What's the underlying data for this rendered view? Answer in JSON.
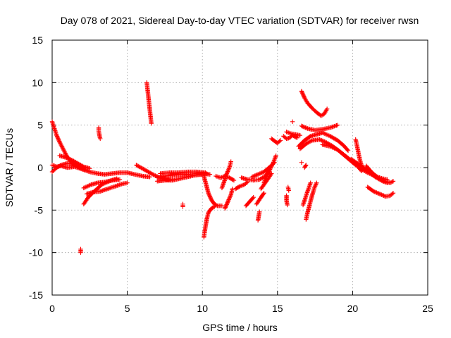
{
  "chart_data": {
    "type": "scatter",
    "title": "Day 078 of 2021, Sidereal Day-to-day VTEC variation (SDTVAR) for receiver rwsn",
    "xlabel": "GPS time / hours",
    "ylabel": "SDTVAR / TECUs",
    "xlim": [
      0,
      25
    ],
    "ylim": [
      -15,
      15
    ],
    "xticks": [
      0,
      5,
      10,
      15,
      20,
      25
    ],
    "yticks": [
      -15,
      -10,
      -5,
      0,
      5,
      10,
      15
    ],
    "grid": true,
    "marker": "+",
    "color": "#ff0000",
    "series": [
      {
        "name": "t01",
        "points": [
          [
            0.0,
            0.3
          ],
          [
            0.3,
            0.1
          ],
          [
            0.6,
            0.2
          ],
          [
            1.0,
            0.0
          ],
          [
            1.5,
            0.1
          ],
          [
            2.0,
            -0.2
          ],
          [
            2.5,
            -0.5
          ],
          [
            3.0,
            -0.7
          ],
          [
            3.5,
            -0.8
          ],
          [
            4.0,
            -0.7
          ],
          [
            4.5,
            -0.6
          ],
          [
            5.0,
            -0.6
          ],
          [
            5.5,
            -0.8
          ],
          [
            6.0,
            -1.0
          ],
          [
            6.5,
            -1.1
          ]
        ]
      },
      {
        "name": "t02",
        "points": [
          [
            0.0,
            5.4
          ],
          [
            0.15,
            4.6
          ],
          [
            0.3,
            3.8
          ],
          [
            0.5,
            3.0
          ],
          [
            0.7,
            2.3
          ],
          [
            0.9,
            1.6
          ],
          [
            1.1,
            1.0
          ],
          [
            1.3,
            0.6
          ],
          [
            1.5,
            0.3
          ],
          [
            1.8,
            0.0
          ]
        ]
      },
      {
        "name": "t03",
        "points": [
          [
            0.0,
            -0.5
          ],
          [
            0.3,
            0.0
          ],
          [
            0.6,
            0.3
          ],
          [
            1.0,
            0.5
          ],
          [
            1.4,
            0.4
          ],
          [
            1.8,
            0.0
          ],
          [
            2.2,
            -0.3
          ]
        ]
      },
      {
        "name": "t04",
        "points": [
          [
            0.5,
            1.4
          ],
          [
            0.9,
            1.2
          ],
          [
            1.3,
            0.9
          ],
          [
            1.7,
            0.5
          ],
          [
            2.1,
            0.1
          ],
          [
            2.5,
            -0.1
          ]
        ]
      },
      {
        "name": "t05",
        "points": [
          [
            2.1,
            -4.3
          ],
          [
            2.4,
            -3.5
          ],
          [
            2.8,
            -2.8
          ],
          [
            3.3,
            -2.0
          ],
          [
            3.8,
            -1.6
          ],
          [
            4.3,
            -1.3
          ]
        ]
      },
      {
        "name": "t06",
        "points": [
          [
            2.1,
            -2.4
          ],
          [
            2.6,
            -2.0
          ],
          [
            3.0,
            -1.8
          ],
          [
            3.5,
            -1.7
          ],
          [
            4.0,
            -1.5
          ],
          [
            4.5,
            -1.4
          ]
        ]
      },
      {
        "name": "t07",
        "points": [
          [
            2.3,
            -3.1
          ],
          [
            2.7,
            -2.9
          ],
          [
            3.2,
            -2.8
          ],
          [
            3.7,
            -2.5
          ],
          [
            4.2,
            -2.2
          ],
          [
            4.7,
            -1.9
          ],
          [
            5.0,
            -1.8
          ]
        ]
      },
      {
        "name": "t08",
        "points": [
          [
            3.1,
            4.7
          ],
          [
            3.1,
            4.3
          ],
          [
            3.15,
            3.8
          ],
          [
            3.2,
            3.4
          ]
        ]
      },
      {
        "name": "t09",
        "points": [
          [
            1.9,
            -9.6
          ],
          [
            1.9,
            -10.0
          ]
        ]
      },
      {
        "name": "t10",
        "points": [
          [
            6.3,
            10.0
          ],
          [
            6.35,
            9.2
          ],
          [
            6.4,
            8.4
          ],
          [
            6.45,
            7.6
          ],
          [
            6.5,
            6.8
          ],
          [
            6.55,
            6.0
          ],
          [
            6.6,
            5.2
          ]
        ]
      },
      {
        "name": "t11",
        "points": [
          [
            5.6,
            0.3
          ],
          [
            6.0,
            -0.1
          ],
          [
            6.4,
            -0.5
          ],
          [
            6.8,
            -0.9
          ],
          [
            7.2,
            -1.2
          ],
          [
            7.6,
            -1.4
          ],
          [
            8.0,
            -1.4
          ]
        ]
      },
      {
        "name": "t12",
        "points": [
          [
            7.0,
            -1.2
          ],
          [
            7.5,
            -1.0
          ],
          [
            8.0,
            -0.9
          ],
          [
            8.5,
            -0.8
          ],
          [
            9.0,
            -0.8
          ],
          [
            9.5,
            -0.9
          ],
          [
            10.0,
            -0.8
          ],
          [
            10.3,
            -0.7
          ]
        ]
      },
      {
        "name": "t13",
        "points": [
          [
            7.0,
            -1.6
          ],
          [
            7.5,
            -1.5
          ],
          [
            8.0,
            -1.5
          ],
          [
            8.5,
            -1.3
          ],
          [
            9.0,
            -1.1
          ],
          [
            9.5,
            -0.9
          ],
          [
            10.0,
            -0.7
          ],
          [
            10.5,
            -0.8
          ]
        ]
      },
      {
        "name": "t14",
        "points": [
          [
            7.2,
            -0.7
          ],
          [
            7.8,
            -0.6
          ],
          [
            8.4,
            -0.6
          ],
          [
            9.0,
            -0.5
          ],
          [
            9.6,
            -0.5
          ],
          [
            10.2,
            -0.6
          ]
        ]
      },
      {
        "name": "t15",
        "points": [
          [
            8.7,
            -4.3
          ],
          [
            8.7,
            -4.6
          ]
        ]
      },
      {
        "name": "t16",
        "points": [
          [
            10.1,
            -1.0
          ],
          [
            10.25,
            -2.0
          ],
          [
            10.4,
            -3.0
          ],
          [
            10.6,
            -3.8
          ],
          [
            10.8,
            -4.3
          ],
          [
            11.0,
            -4.5
          ],
          [
            11.3,
            -4.5
          ]
        ]
      },
      {
        "name": "t17",
        "points": [
          [
            10.1,
            -8.2
          ],
          [
            10.2,
            -7.0
          ],
          [
            10.3,
            -6.0
          ],
          [
            10.4,
            -5.3
          ],
          [
            10.6,
            -4.8
          ],
          [
            10.8,
            -4.6
          ]
        ]
      },
      {
        "name": "t18",
        "points": [
          [
            10.9,
            -1.0
          ],
          [
            11.2,
            -1.2
          ],
          [
            11.5,
            -1.0
          ],
          [
            11.8,
            -1.2
          ],
          [
            12.1,
            -1.5
          ]
        ]
      },
      {
        "name": "t19",
        "points": [
          [
            11.3,
            -2.4
          ],
          [
            11.5,
            -1.4
          ],
          [
            11.6,
            -0.8
          ],
          [
            11.8,
            0.0
          ],
          [
            11.9,
            0.7
          ]
        ]
      },
      {
        "name": "t20",
        "points": [
          [
            11.5,
            -4.8
          ],
          [
            11.7,
            -4.0
          ],
          [
            11.9,
            -3.2
          ],
          [
            12.0,
            -2.5
          ]
        ]
      },
      {
        "name": "t21",
        "points": [
          [
            12.2,
            -2.5
          ],
          [
            12.5,
            -2.2
          ],
          [
            12.8,
            -2.0
          ],
          [
            13.0,
            -1.7
          ]
        ]
      },
      {
        "name": "t22",
        "points": [
          [
            12.6,
            -1.2
          ],
          [
            13.0,
            -1.4
          ],
          [
            13.4,
            -1.5
          ],
          [
            13.8,
            -1.4
          ],
          [
            14.2,
            -1.0
          ],
          [
            14.4,
            -0.5
          ]
        ]
      },
      {
        "name": "t23",
        "points": [
          [
            12.9,
            -4.5
          ],
          [
            13.2,
            -3.9
          ],
          [
            13.4,
            -3.5
          ]
        ]
      },
      {
        "name": "t24",
        "points": [
          [
            13.6,
            -4.3
          ],
          [
            13.9,
            -3.5
          ],
          [
            14.1,
            -3.0
          ]
        ]
      },
      {
        "name": "t25",
        "points": [
          [
            13.7,
            -6.2
          ],
          [
            13.75,
            -5.7
          ],
          [
            13.8,
            -5.2
          ]
        ]
      },
      {
        "name": "t26",
        "points": [
          [
            14.1,
            -1.8
          ],
          [
            14.3,
            -0.9
          ],
          [
            14.5,
            -0.2
          ],
          [
            14.7,
            0.5
          ],
          [
            14.9,
            1.4
          ]
        ]
      },
      {
        "name": "t27",
        "points": [
          [
            13.3,
            -1.1
          ],
          [
            13.7,
            -0.8
          ],
          [
            14.1,
            -0.5
          ],
          [
            14.5,
            0.1
          ],
          [
            14.8,
            0.6
          ]
        ]
      },
      {
        "name": "t28",
        "points": [
          [
            13.9,
            -2.5
          ],
          [
            14.3,
            -1.5
          ],
          [
            14.6,
            -0.7
          ]
        ]
      },
      {
        "name": "t29",
        "points": [
          [
            14.6,
            3.4
          ],
          [
            14.9,
            3.0
          ],
          [
            15.0,
            2.9
          ],
          [
            15.2,
            3.2
          ]
        ]
      },
      {
        "name": "t30",
        "points": [
          [
            15.4,
            3.7
          ],
          [
            15.6,
            3.4
          ],
          [
            15.8,
            3.5
          ],
          [
            16.0,
            3.8
          ],
          [
            16.3,
            3.5
          ]
        ]
      },
      {
        "name": "t31",
        "points": [
          [
            15.6,
            4.2
          ],
          [
            15.9,
            4.0
          ],
          [
            16.2,
            3.9
          ],
          [
            16.5,
            3.8
          ]
        ]
      },
      {
        "name": "t32",
        "points": [
          [
            15.6,
            -3.3
          ],
          [
            15.6,
            -3.9
          ],
          [
            15.65,
            -4.4
          ]
        ]
      },
      {
        "name": "t33",
        "points": [
          [
            15.7,
            -2.3
          ],
          [
            15.75,
            -2.7
          ]
        ]
      },
      {
        "name": "t34",
        "points": [
          [
            16.0,
            5.4
          ]
        ]
      },
      {
        "name": "t35",
        "points": [
          [
            16.6,
            9.0
          ],
          [
            16.8,
            8.2
          ],
          [
            17.0,
            7.6
          ],
          [
            17.3,
            7.0
          ],
          [
            17.6,
            6.5
          ],
          [
            17.9,
            6.1
          ],
          [
            18.1,
            6.3
          ],
          [
            18.3,
            6.9
          ]
        ]
      },
      {
        "name": "t36",
        "points": [
          [
            16.6,
            4.9
          ],
          [
            17.0,
            4.6
          ],
          [
            17.5,
            4.4
          ],
          [
            18.0,
            4.5
          ],
          [
            18.5,
            4.7
          ],
          [
            19.0,
            5.0
          ]
        ]
      },
      {
        "name": "t37",
        "points": [
          [
            16.4,
            2.5
          ],
          [
            16.8,
            3.2
          ],
          [
            17.2,
            3.7
          ],
          [
            17.6,
            3.9
          ],
          [
            18.0,
            4.1
          ],
          [
            18.5,
            3.7
          ],
          [
            19.0,
            3.2
          ],
          [
            19.4,
            2.6
          ],
          [
            19.7,
            2.0
          ]
        ]
      },
      {
        "name": "t38",
        "points": [
          [
            16.5,
            2.2
          ],
          [
            16.9,
            2.8
          ],
          [
            17.3,
            3.2
          ],
          [
            17.8,
            3.3
          ],
          [
            18.2,
            3.0
          ],
          [
            18.6,
            2.6
          ],
          [
            19.0,
            2.1
          ],
          [
            19.4,
            1.5
          ],
          [
            19.8,
            0.9
          ],
          [
            20.2,
            0.3
          ]
        ]
      },
      {
        "name": "t39",
        "points": [
          [
            18.0,
            2.7
          ],
          [
            18.5,
            2.5
          ],
          [
            19.0,
            2.1
          ],
          [
            19.5,
            1.4
          ],
          [
            20.0,
            0.7
          ],
          [
            20.3,
            0.2
          ],
          [
            20.6,
            -0.4
          ]
        ]
      },
      {
        "name": "t40",
        "points": [
          [
            16.9,
            -6.1
          ],
          [
            17.0,
            -5.3
          ],
          [
            17.15,
            -4.3
          ],
          [
            17.3,
            -3.3
          ],
          [
            17.45,
            -2.4
          ],
          [
            17.6,
            -1.8
          ]
        ]
      },
      {
        "name": "t41",
        "points": [
          [
            16.7,
            -4.4
          ],
          [
            16.85,
            -3.6
          ],
          [
            17.0,
            -2.8
          ],
          [
            17.2,
            -1.8
          ]
        ]
      },
      {
        "name": "t42",
        "points": [
          [
            16.9,
            0.3
          ],
          [
            16.8,
            0.0
          ]
        ]
      },
      {
        "name": "t43",
        "points": [
          [
            16.6,
            0.6
          ]
        ]
      },
      {
        "name": "t44",
        "points": [
          [
            20.2,
            3.3
          ],
          [
            20.3,
            2.5
          ],
          [
            20.4,
            1.6
          ],
          [
            20.5,
            0.8
          ],
          [
            20.6,
            0.2
          ]
        ]
      },
      {
        "name": "t45",
        "points": [
          [
            19.9,
            1.0
          ],
          [
            20.4,
            0.4
          ],
          [
            21.0,
            -0.4
          ],
          [
            21.5,
            -1.1
          ],
          [
            22.0,
            -1.6
          ],
          [
            22.3,
            -1.8
          ]
        ]
      },
      {
        "name": "t46",
        "points": [
          [
            20.6,
            -0.2
          ],
          [
            21.0,
            -0.6
          ],
          [
            21.5,
            -1.0
          ],
          [
            22.0,
            -1.3
          ],
          [
            22.3,
            -1.4
          ]
        ]
      },
      {
        "name": "t47",
        "points": [
          [
            20.9,
            0.2
          ],
          [
            21.3,
            -0.6
          ],
          [
            21.7,
            -1.2
          ],
          [
            22.1,
            -1.6
          ],
          [
            22.5,
            -1.8
          ],
          [
            22.7,
            -1.6
          ]
        ]
      },
      {
        "name": "t48",
        "points": [
          [
            21.0,
            -2.3
          ],
          [
            21.4,
            -2.8
          ],
          [
            21.8,
            -3.1
          ],
          [
            22.2,
            -3.4
          ],
          [
            22.5,
            -3.3
          ],
          [
            22.7,
            -3.0
          ]
        ]
      }
    ]
  }
}
